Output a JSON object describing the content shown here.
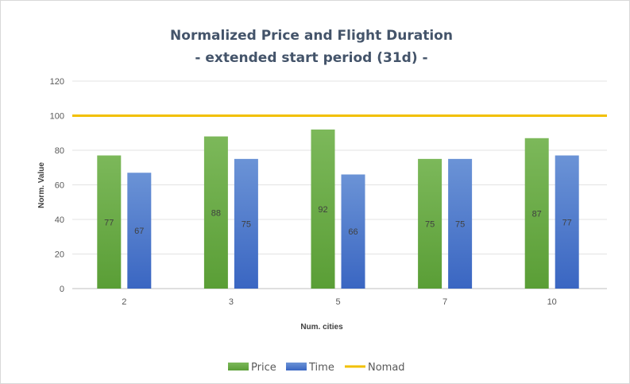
{
  "colors": {
    "price_top": "#7cb85a",
    "price_bottom": "#5a9e36",
    "time_top": "#6b93d6",
    "time_bottom": "#3a66c2",
    "nomad": "#f2c000",
    "grid": "#e3e3e3",
    "axis": "#bfbfbf"
  },
  "chart_data": {
    "type": "bar",
    "title": "Normalized Price and Flight Duration",
    "subtitle": "- extended start period (31d) -",
    "xlabel": "Num. cities",
    "ylabel": "Norm. Value",
    "categories": [
      "2",
      "3",
      "5",
      "7",
      "10"
    ],
    "series": [
      {
        "name": "Price",
        "values": [
          77,
          88,
          92,
          75,
          87
        ],
        "color": "#70ad47"
      },
      {
        "name": "Time",
        "values": [
          67,
          75,
          66,
          75,
          77
        ],
        "color": "#4472c4"
      }
    ],
    "reference_lines": [
      {
        "name": "Nomad",
        "value": 100,
        "color": "#ffc000"
      }
    ],
    "ylim": [
      0,
      120
    ],
    "yticks": [
      0,
      20,
      40,
      60,
      80,
      100,
      120
    ],
    "grid": true,
    "legend": "bottom",
    "legend_entries": [
      "Price",
      "Time",
      "Nomad"
    ]
  }
}
